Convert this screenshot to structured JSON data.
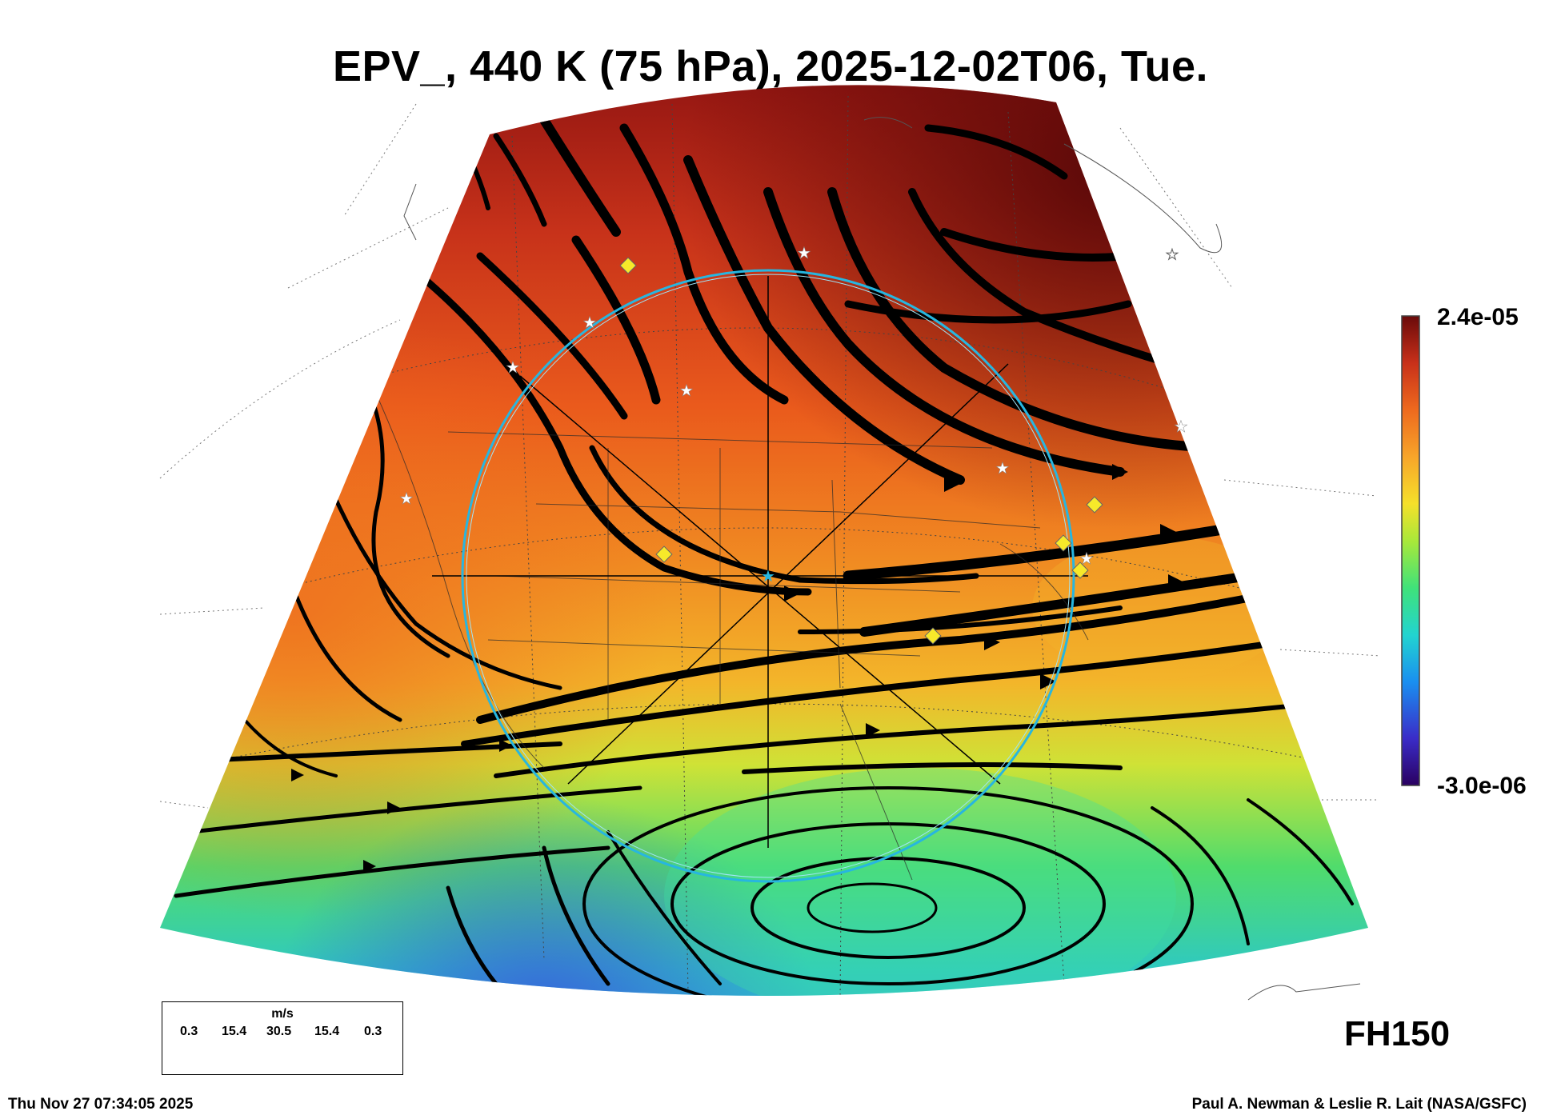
{
  "title": "EPV_, 440 K (75 hPa), 2025-12-02T06, Tue.",
  "colorbar": {
    "max_label": "2.4e-05",
    "min_label": "-3.0e-06",
    "stops": [
      "#2a0060",
      "#3a2cc8",
      "#1a8ff0",
      "#22d4d0",
      "#3fe27a",
      "#a8e83a",
      "#f5e02a",
      "#f7a52a",
      "#ee6a1e",
      "#c8301a",
      "#6a0a0a"
    ]
  },
  "forecast_hour": "FH150",
  "legend": {
    "unit": "m/s",
    "ticks": [
      "0.3",
      "15.4",
      "30.5",
      "15.4",
      "0.3"
    ]
  },
  "footer": {
    "timestamp": "Thu Nov 27 07:34:05 2025",
    "credit": "Paul A. Newman & Leslie R. Lait (NASA/GSFC)"
  }
}
